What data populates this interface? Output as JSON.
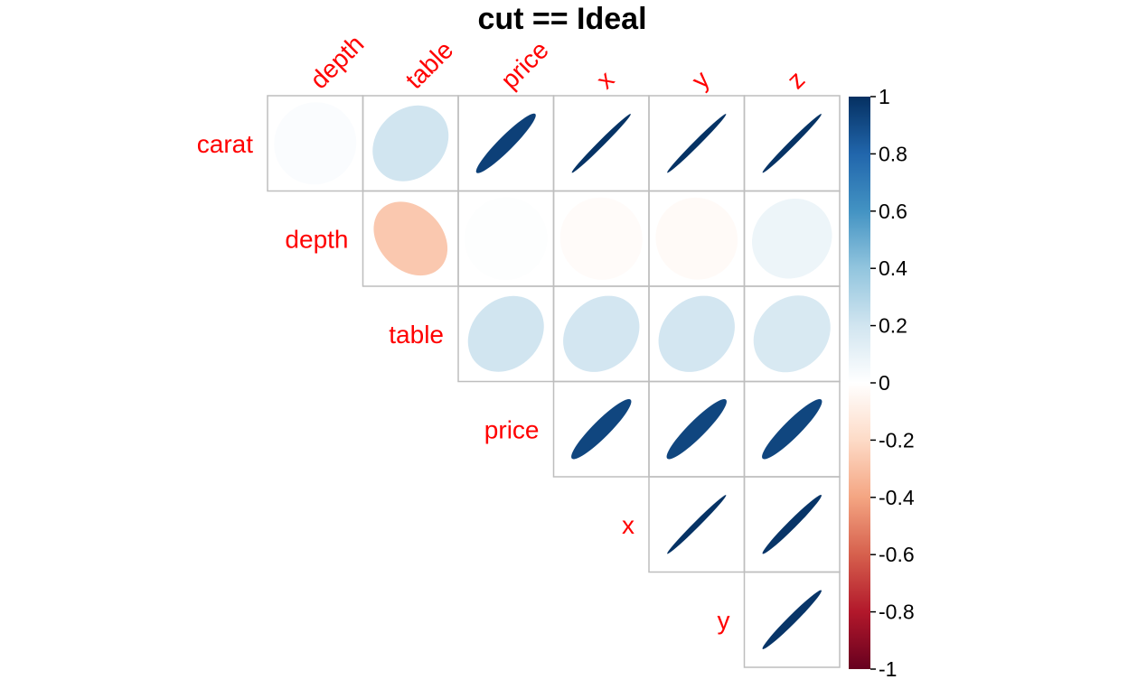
{
  "chart_data": {
    "type": "heatmap",
    "subtype": "correlation-matrix-ellipse-upper-triangle",
    "title": "cut == Ideal",
    "row_labels": [
      "carat",
      "depth",
      "table",
      "price",
      "x",
      "y"
    ],
    "col_labels": [
      "depth",
      "table",
      "price",
      "x",
      "y",
      "z"
    ],
    "values": [
      [
        0.02,
        0.2,
        0.94,
        0.99,
        0.99,
        0.99
      ],
      [
        null,
        -0.27,
        0.01,
        -0.02,
        -0.03,
        0.08
      ],
      [
        null,
        null,
        0.2,
        0.19,
        0.19,
        0.17
      ],
      [
        null,
        null,
        null,
        0.92,
        0.92,
        0.92
      ],
      [
        null,
        null,
        null,
        null,
        0.99,
        0.98
      ],
      [
        null,
        null,
        null,
        null,
        null,
        0.98
      ]
    ],
    "colorbar": {
      "range": [
        -1,
        1
      ],
      "tick_labels": [
        "1",
        "0.8",
        "0.6",
        "0.4",
        "0.2",
        "0",
        "-0.2",
        "-0.4",
        "-0.6",
        "-0.8",
        "-1"
      ],
      "tick_values": [
        1,
        0.8,
        0.6,
        0.4,
        0.2,
        0,
        -0.2,
        -0.4,
        -0.6,
        -0.8,
        -1
      ],
      "colors": [
        "#67001F",
        "#B2182B",
        "#D6604D",
        "#F4A582",
        "#FDDBC7",
        "#FFFFFF",
        "#D1E5F0",
        "#92C5DE",
        "#4393C3",
        "#2166AC",
        "#053061"
      ]
    },
    "label_color": "#FF0000",
    "grid_color": "#BEBEBE"
  }
}
